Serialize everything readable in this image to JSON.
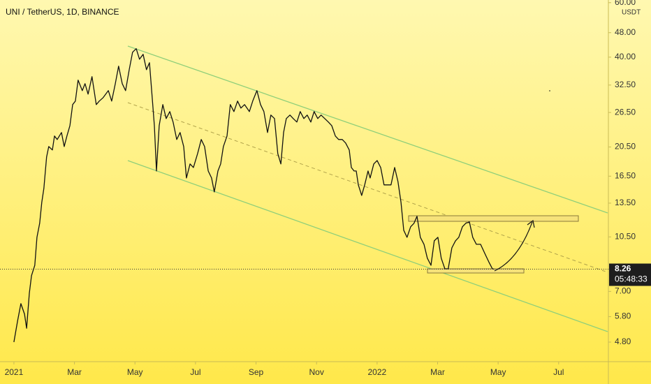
{
  "chart_data": {
    "type": "line",
    "title": "UNI / TetherUS, 1D, BINANCE",
    "currency": "USDT",
    "log_scale": true,
    "color": "#111111",
    "x": [
      0,
      0.12,
      0.23,
      0.35,
      0.42,
      0.51,
      0.58,
      0.69,
      0.76,
      0.85,
      0.92,
      0.99,
      1.08,
      1.15,
      1.27,
      1.34,
      1.43,
      1.57,
      1.66,
      1.75,
      1.85,
      1.94,
      2.03,
      2.12,
      2.26,
      2.35,
      2.45,
      2.58,
      2.72,
      2.82,
      2.95,
      3.12,
      3.23,
      3.35,
      3.46,
      3.58,
      3.69,
      3.81,
      3.92,
      4.04,
      4.15,
      4.27,
      4.38,
      4.48,
      4.57,
      4.64,
      4.71,
      4.8,
      4.92,
      5.03,
      5.15,
      5.26,
      5.38,
      5.49,
      5.61,
      5.7,
      5.82,
      5.93,
      6.07,
      6.19,
      6.3,
      6.42,
      6.53,
      6.62,
      6.74,
      6.83,
      6.92,
      7.04,
      7.15,
      7.27,
      7.39,
      7.5,
      7.62,
      7.78,
      7.89,
      8.03,
      8.15,
      8.26,
      8.38,
      8.49,
      8.61,
      8.72,
      8.82,
      8.91,
      9.0,
      9.12,
      9.23,
      9.35,
      9.46,
      9.58,
      9.69,
      9.81,
      9.92,
      10.04,
      10.15,
      10.27,
      10.39,
      10.5,
      10.62,
      10.73,
      10.85,
      10.96,
      11.08,
      11.15,
      11.24,
      11.31,
      11.38,
      11.49,
      11.59,
      11.7,
      11.77,
      11.89,
      12.0,
      12.12,
      12.23,
      12.35,
      12.46,
      12.58,
      12.69,
      12.79,
      12.88,
      12.99,
      13.11,
      13.22,
      13.32,
      13.43,
      13.55,
      13.66,
      13.78,
      13.89,
      14.01,
      14.12,
      14.24,
      14.35,
      14.47,
      14.59,
      14.7,
      14.82,
      14.93,
      15.05,
      15.16,
      15.28,
      15.42,
      15.58,
      15.69,
      15.81,
      15.86
    ],
    "values": [
      4.8,
      5.61,
      6.39,
      5.91,
      5.32,
      6.91,
      7.87,
      8.5,
      10.47,
      11.62,
      13.57,
      15.06,
      19.03,
      20.57,
      20.05,
      22.24,
      21.67,
      22.83,
      20.57,
      22.24,
      24.04,
      28.1,
      28.84,
      33.71,
      31.18,
      32.85,
      30.38,
      34.6,
      28.1,
      28.84,
      29.6,
      31.18,
      28.84,
      32.85,
      37.4,
      32.85,
      31.18,
      36.44,
      41.5,
      42.6,
      39.4,
      40.86,
      36.44,
      38.39,
      29.6,
      24.04,
      17.15,
      24.04,
      28.1,
      25.33,
      26.68,
      24.68,
      21.67,
      22.83,
      20.57,
      16.28,
      18.07,
      17.6,
      19.53,
      21.67,
      20.57,
      17.15,
      16.28,
      14.67,
      17.15,
      18.07,
      20.57,
      22.24,
      28.1,
      26.68,
      28.84,
      27.38,
      28.1,
      26.68,
      28.84,
      31.18,
      28.1,
      26.68,
      22.83,
      26.0,
      25.33,
      19.53,
      18.07,
      22.83,
      25.33,
      26.0,
      25.33,
      24.68,
      26.68,
      25.33,
      26.0,
      24.68,
      26.68,
      25.33,
      26.0,
      25.33,
      24.68,
      24.04,
      22.24,
      21.67,
      21.67,
      21.12,
      20.05,
      17.6,
      17.15,
      17.15,
      15.46,
      14.3,
      15.46,
      17.15,
      16.28,
      18.07,
      18.54,
      17.6,
      15.46,
      15.46,
      15.46,
      17.6,
      15.86,
      13.57,
      11.03,
      10.47,
      11.32,
      11.62,
      12.24,
      10.47,
      9.94,
      8.96,
      8.5,
      10.2,
      10.47,
      8.96,
      8.28,
      8.28,
      9.68,
      10.2,
      10.47,
      11.32,
      11.62,
      11.74,
      10.47,
      9.94,
      9.94,
      9.19,
      8.73,
      8.28,
      8.26
    ],
    "last_price": 8.26,
    "countdown": "05:48:33",
    "xlim": [
      -0.46,
      19.62
    ],
    "xticks": [
      {
        "value": 0,
        "label": "2021"
      },
      {
        "value": 2,
        "label": "Mar"
      },
      {
        "value": 4,
        "label": "May"
      },
      {
        "value": 6,
        "label": "Jul"
      },
      {
        "value": 8,
        "label": "Sep"
      },
      {
        "value": 10,
        "label": "Nov"
      },
      {
        "value": 12,
        "label": "2022"
      },
      {
        "value": 14,
        "label": "Mar"
      },
      {
        "value": 16,
        "label": "May"
      },
      {
        "value": 18,
        "label": "Jul"
      }
    ],
    "ylim": [
      4.15,
      61.2
    ],
    "yticks": [
      {
        "value": 60,
        "label": "60.00"
      },
      {
        "value": 48,
        "label": "48.00"
      },
      {
        "value": 40,
        "label": "40.00"
      },
      {
        "value": 32.5,
        "label": "32.50"
      },
      {
        "value": 26.5,
        "label": "26.50"
      },
      {
        "value": 20.5,
        "label": "20.50"
      },
      {
        "value": 16.5,
        "label": "16.50"
      },
      {
        "value": 13.5,
        "label": "13.50"
      },
      {
        "value": 10.5,
        "label": "10.50"
      },
      {
        "value": 7,
        "label": "7.00"
      },
      {
        "value": 5.8,
        "label": "5.80"
      },
      {
        "value": 4.8,
        "label": "4.80"
      }
    ]
  }
}
